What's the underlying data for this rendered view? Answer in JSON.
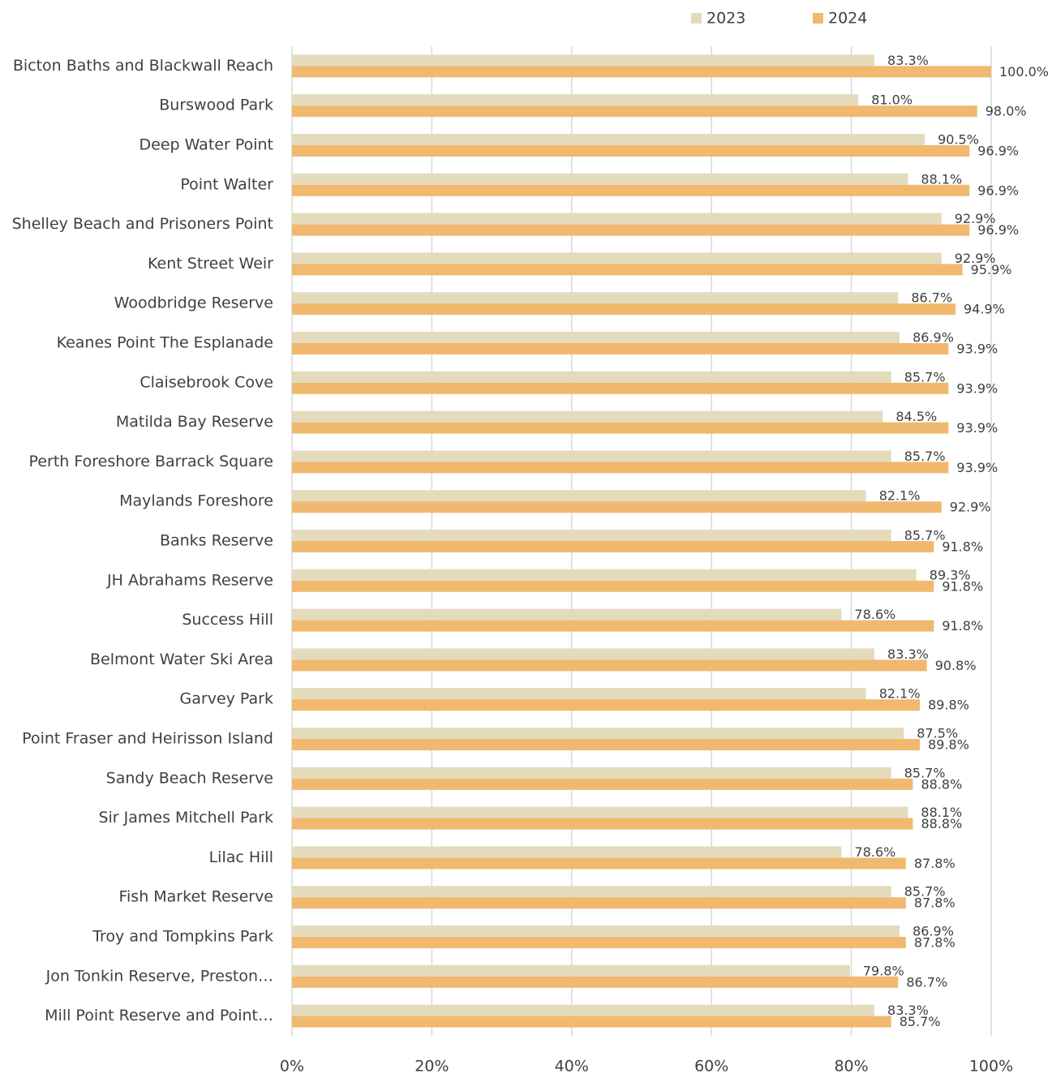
{
  "chart_data": {
    "type": "bar",
    "orientation": "horizontal",
    "categories": [
      "Bicton Baths and Blackwall Reach",
      "Burswood Park",
      "Deep Water Point",
      "Point Walter",
      "Shelley Beach and Prisoners Point",
      "Kent Street Weir",
      "Woodbridge Reserve",
      "Keanes Point The Esplanade",
      "Claisebrook Cove",
      "Matilda Bay Reserve",
      "Perth Foreshore Barrack Square",
      "Maylands Foreshore",
      "Banks Reserve",
      "JH Abrahams Reserve",
      "Success Hill",
      "Belmont Water Ski Area",
      "Garvey Park",
      "Point Fraser and Heirisson Island",
      "Sandy Beach Reserve",
      "Sir James Mitchell Park",
      "Lilac Hill",
      "Fish Market Reserve",
      "Troy and Tompkins Park",
      "Jon Tonkin Reserve, Preston…",
      "Mill Point Reserve and Point…"
    ],
    "series": [
      {
        "name": "2023",
        "color": "#e4dbbd",
        "values": [
          83.3,
          81.0,
          90.5,
          88.1,
          92.9,
          92.9,
          86.7,
          86.9,
          85.7,
          84.5,
          85.7,
          82.1,
          85.7,
          89.3,
          78.6,
          83.3,
          82.1,
          87.5,
          85.7,
          88.1,
          78.6,
          85.7,
          86.9,
          79.8,
          83.3
        ],
        "value_labels": [
          "83.3%",
          "81.0%",
          "90.5%",
          "88.1%",
          "92.9%",
          "92.9%",
          "86.7%",
          "86.9%",
          "85.7%",
          "84.5%",
          "85.7%",
          "82.1%",
          "85.7%",
          "89.3%",
          "78.6%",
          "83.3%",
          "82.1%",
          "87.5%",
          "85.7%",
          "88.1%",
          "78.6%",
          "85.7%",
          "86.9%",
          "79.8%",
          "83.3%"
        ]
      },
      {
        "name": "2024",
        "color": "#f0b96f",
        "values": [
          100.0,
          98.0,
          96.9,
          96.9,
          96.9,
          95.9,
          94.9,
          93.9,
          93.9,
          93.9,
          93.9,
          92.9,
          91.8,
          91.8,
          91.8,
          90.8,
          89.8,
          89.8,
          88.8,
          88.8,
          87.8,
          87.8,
          87.8,
          86.7,
          85.7
        ],
        "value_labels": [
          "100.0%",
          "98.0%",
          "96.9%",
          "96.9%",
          "96.9%",
          "95.9%",
          "94.9%",
          "93.9%",
          "93.9%",
          "93.9%",
          "93.9%",
          "92.9%",
          "91.8%",
          "91.8%",
          "91.8%",
          "90.8%",
          "89.8%",
          "89.8%",
          "88.8%",
          "88.8%",
          "87.8%",
          "87.8%",
          "87.8%",
          "86.7%",
          "85.7%"
        ]
      }
    ],
    "xlim": [
      0,
      100
    ],
    "xticks": [
      {
        "value": 0,
        "label": "0%"
      },
      {
        "value": 20,
        "label": "20%"
      },
      {
        "value": 40,
        "label": "40%"
      },
      {
        "value": 60,
        "label": "60%"
      },
      {
        "value": 80,
        "label": "80%"
      },
      {
        "value": 100,
        "label": "100%"
      }
    ],
    "grid": true,
    "legend": "top"
  }
}
